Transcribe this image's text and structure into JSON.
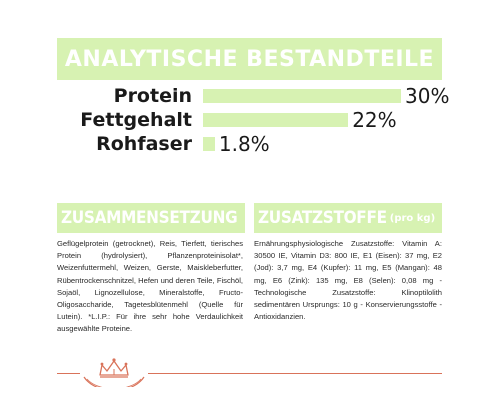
{
  "title": "ANALYTISCHE BESTANDTEILE",
  "nutrients": [
    {
      "label": "Protein",
      "value_text": "30%",
      "value": 30
    },
    {
      "label": "Fettgehalt",
      "value_text": "22%",
      "value": 22
    },
    {
      "label": "Rohfaser",
      "value_text": "1.8%",
      "value": 1.8
    }
  ],
  "composition": {
    "heading": "ZUSAMMENSETZUNG",
    "text": "Geflügelprotein (getrocknet), Reis, Tierfett, tierisches Protein (hydrolysiert), Pflanzenproteinisolat*, Weizenfuttermehl, Weizen, Gerste, Maiskleberfutter, Rübentrockenschnitzel, Hefen und deren Teile, Fischöl, Sojaöl, Lignozellulose, Mineralstoffe, Fructo-Oligosaccharide, Tagetesblütenmehl (Quelle für Lutein). *L.I.P.: Für ihre sehr hohe Verdaulichkeit ausgewählte Proteine."
  },
  "additives": {
    "heading": "ZUSATZSTOFFE",
    "heading_sub": "(pro kg)",
    "text": "Ernährungsphysiologische Zusatzstoffe: Vitamin A: 30500 IE, Vitamin D3: 800 IE, E1 (Eisen): 37 mg, E2 (Jod): 3,7 mg, E4 (Kupfer): 11 mg, E5 (Mangan): 48 mg, E6 (Zink): 135 mg, E8 (Selen): 0,08 mg - Technologische Zusatzstoffe: Klinoptilolith sedimentären Ursprungs: 10 g - Konservierungsstoffe - Antioxidanzien."
  },
  "colors": {
    "accent": "#d7f2b2",
    "brand": "#d9735a"
  }
}
